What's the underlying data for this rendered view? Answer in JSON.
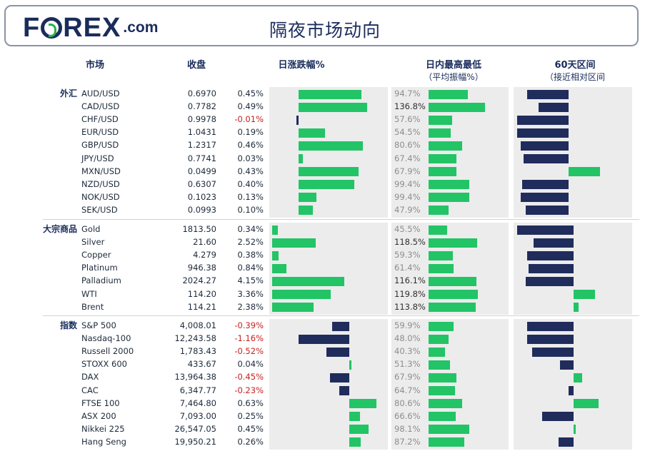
{
  "header": {
    "brand_left": "F",
    "brand_right": "REX",
    "brand_suffix": ".com",
    "title": "隔夜市场动向"
  },
  "columns": {
    "market": "市场",
    "close": "收盘",
    "daily_change": "日涨跌幅%",
    "intraday": "日内最高最低",
    "intraday_sub": "（平均振幅%）",
    "range60": "60天区间",
    "range60_sub": "（接近相对区间"
  },
  "colors": {
    "positive": "#22c466",
    "negative": "#1f2c5c",
    "neg_text": "#c8201e",
    "panel": "#ececec"
  },
  "chart_data": {
    "type": "bar",
    "groups": [
      {
        "name": "外汇",
        "rows": [
          {
            "symbol": "AUD/USD",
            "close": "0.6970",
            "change_label": "0.45%",
            "change": 0.45,
            "intraday": 94.7,
            "intraday_label": "94.7%",
            "range60": -0.25
          },
          {
            "symbol": "CAD/USD",
            "close": "0.7782",
            "change_label": "0.49%",
            "change": 0.49,
            "intraday": 136.8,
            "intraday_label": "136.8%",
            "range60": -0.18
          },
          {
            "symbol": "CHF/USD",
            "close": "0.9978",
            "change_label": "-0.01%",
            "change": -0.01,
            "intraday": 57.6,
            "intraday_label": "57.6%",
            "range60": -0.31
          },
          {
            "symbol": "EUR/USD",
            "close": "1.0431",
            "change_label": "0.19%",
            "change": 0.19,
            "intraday": 54.5,
            "intraday_label": "54.5%",
            "range60": -0.31
          },
          {
            "symbol": "GBP/USD",
            "close": "1.2317",
            "change_label": "0.46%",
            "change": 0.46,
            "intraday": 80.6,
            "intraday_label": "80.6%",
            "range60": -0.29
          },
          {
            "symbol": "JPY/USD",
            "close": "0.7741",
            "change_label": "0.03%",
            "change": 0.03,
            "intraday": 67.4,
            "intraday_label": "67.4%",
            "range60": -0.27
          },
          {
            "symbol": "MXN/USD",
            "close": "0.0499",
            "change_label": "0.43%",
            "change": 0.43,
            "intraday": 67.9,
            "intraday_label": "67.9%",
            "range60": 0.19
          },
          {
            "symbol": "NZD/USD",
            "close": "0.6307",
            "change_label": "0.40%",
            "change": 0.4,
            "intraday": 99.4,
            "intraday_label": "99.4%",
            "range60": -0.28
          },
          {
            "symbol": "NOK/USD",
            "close": "0.1023",
            "change_label": "0.13%",
            "change": 0.13,
            "intraday": 99.4,
            "intraday_label": "99.4%",
            "range60": -0.29
          },
          {
            "symbol": "SEK/USD",
            "close": "0.0993",
            "change_label": "0.10%",
            "change": 0.1,
            "intraday": 47.9,
            "intraday_label": "47.9%",
            "range60": -0.26
          }
        ]
      },
      {
        "name": "大宗商品",
        "rows": [
          {
            "symbol": "Gold",
            "close": "1813.50",
            "change_label": "0.34%",
            "change": 0.34,
            "intraday": 45.5,
            "intraday_label": "45.5%",
            "range60": -0.34
          },
          {
            "symbol": "Silver",
            "close": "21.60",
            "change_label": "2.52%",
            "change": 2.52,
            "intraday": 118.5,
            "intraday_label": "118.5%",
            "range60": -0.24
          },
          {
            "symbol": "Copper",
            "close": "4.279",
            "change_label": "0.38%",
            "change": 0.38,
            "intraday": 59.3,
            "intraday_label": "59.3%",
            "range60": -0.28
          },
          {
            "symbol": "Platinum",
            "close": "946.38",
            "change_label": "0.84%",
            "change": 0.84,
            "intraday": 61.4,
            "intraday_label": "61.4%",
            "range60": -0.27
          },
          {
            "symbol": "Palladium",
            "close": "2024.27",
            "change_label": "4.15%",
            "change": 4.15,
            "intraday": 116.1,
            "intraday_label": "116.1%",
            "range60": -0.29
          },
          {
            "symbol": "WTI",
            "close": "114.20",
            "change_label": "3.36%",
            "change": 3.36,
            "intraday": 119.8,
            "intraday_label": "119.8%",
            "range60": 0.13
          },
          {
            "symbol": "Brent",
            "close": "114.21",
            "change_label": "2.38%",
            "change": 2.38,
            "intraday": 113.8,
            "intraday_label": "113.8%",
            "range60": 0.03
          }
        ]
      },
      {
        "name": "指数",
        "rows": [
          {
            "symbol": "S&P 500",
            "close": "4,008.01",
            "change_label": "-0.39%",
            "change": -0.39,
            "intraday": 59.9,
            "intraday_label": "59.9%",
            "range60": -0.28
          },
          {
            "symbol": "Nasdaq-100",
            "close": "12,243.58",
            "change_label": "-1.16%",
            "change": -1.16,
            "intraday": 48.0,
            "intraday_label": "48.0%",
            "range60": -0.28
          },
          {
            "symbol": "Russell 2000",
            "close": "1,783.43",
            "change_label": "-0.52%",
            "change": -0.52,
            "intraday": 40.3,
            "intraday_label": "40.3%",
            "range60": -0.25
          },
          {
            "symbol": "STOXX 600",
            "close": "433.67",
            "change_label": "0.04%",
            "change": 0.04,
            "intraday": 51.3,
            "intraday_label": "51.3%",
            "range60": -0.08
          },
          {
            "symbol": "DAX",
            "close": "13,964.38",
            "change_label": "-0.45%",
            "change": -0.45,
            "intraday": 67.9,
            "intraday_label": "67.9%",
            "range60": 0.05
          },
          {
            "symbol": "CAC",
            "close": "6,347.77",
            "change_label": "-0.23%",
            "change": -0.23,
            "intraday": 64.7,
            "intraday_label": "64.7%",
            "range60": -0.03
          },
          {
            "symbol": "FTSE 100",
            "close": "7,464.80",
            "change_label": "0.63%",
            "change": 0.63,
            "intraday": 80.6,
            "intraday_label": "80.6%",
            "range60": 0.15
          },
          {
            "symbol": "ASX 200",
            "close": "7,093.00",
            "change_label": "0.25%",
            "change": 0.25,
            "intraday": 66.6,
            "intraday_label": "66.6%",
            "range60": -0.19
          },
          {
            "symbol": "Nikkei 225",
            "close": "26,547.05",
            "change_label": "0.45%",
            "change": 0.45,
            "intraday": 98.1,
            "intraday_label": "98.1%",
            "range60": 0.01
          },
          {
            "symbol": "Hang Seng",
            "close": "19,950.21",
            "change_label": "0.26%",
            "change": 0.26,
            "intraday": 87.2,
            "intraday_label": "87.2%",
            "range60": -0.09
          }
        ]
      }
    ]
  }
}
